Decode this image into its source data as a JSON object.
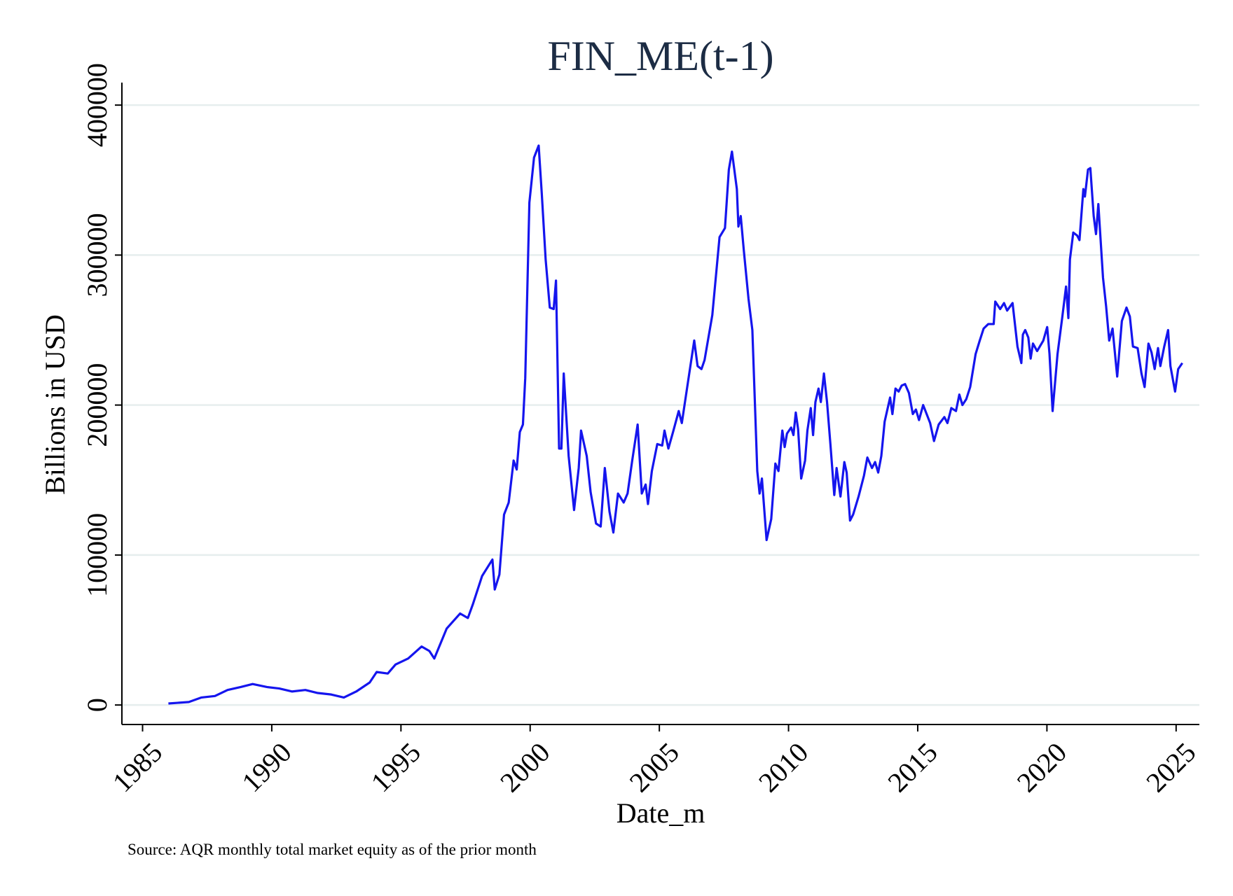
{
  "chart_data": {
    "type": "line",
    "title": "FIN_ME(t-1)",
    "x_label": "Date_m",
    "y_label": "Billions in USD",
    "note": "Source: AQR monthly total market equity as of the prior month",
    "xlim": [
      1984.2,
      2025.9
    ],
    "ylim": [
      -13000,
      415000
    ],
    "xticks": [
      1985,
      1990,
      1995,
      2000,
      2005,
      2010,
      2015,
      2020,
      2025
    ],
    "yticks": [
      0,
      100000,
      200000,
      300000,
      400000
    ],
    "grid": true,
    "x": [
      1986.0,
      1986.79,
      1987.28,
      1987.8,
      1988.29,
      1988.8,
      1989.26,
      1989.81,
      1990.29,
      1990.78,
      1991.3,
      1991.78,
      1992.3,
      1992.79,
      1993.27,
      1993.79,
      1994.06,
      1994.49,
      1994.79,
      1995.28,
      1995.8,
      1996.1,
      1996.29,
      1996.77,
      1997.29,
      1997.59,
      1997.78,
      1998.14,
      1998.54,
      1998.63,
      1998.81,
      1998.99,
      1999.17,
      1999.36,
      1999.48,
      1999.6,
      1999.72,
      1999.81,
      1999.97,
      2000.15,
      2000.33,
      2000.45,
      2000.6,
      2000.76,
      2000.91,
      2001.0,
      2001.12,
      2001.21,
      2001.3,
      2001.49,
      2001.7,
      2001.88,
      2001.97,
      2002.19,
      2002.34,
      2002.55,
      2002.73,
      2002.89,
      2003.07,
      2003.22,
      2003.4,
      2003.62,
      2003.77,
      2003.95,
      2004.16,
      2004.32,
      2004.47,
      2004.56,
      2004.71,
      2004.92,
      2005.11,
      2005.2,
      2005.35,
      2005.53,
      2005.75,
      2005.87,
      2006.14,
      2006.35,
      2006.48,
      2006.63,
      2006.75,
      2007.05,
      2007.33,
      2007.54,
      2007.69,
      2007.81,
      2008.0,
      2008.06,
      2008.15,
      2008.27,
      2008.45,
      2008.6,
      2008.79,
      2008.88,
      2008.97,
      2009.15,
      2009.33,
      2009.49,
      2009.61,
      2009.76,
      2009.85,
      2009.94,
      2010.1,
      2010.19,
      2010.28,
      2010.37,
      2010.49,
      2010.64,
      2010.73,
      2010.86,
      2010.95,
      2011.04,
      2011.16,
      2011.25,
      2011.37,
      2011.49,
      2011.62,
      2011.77,
      2011.86,
      2012.01,
      2012.16,
      2012.25,
      2012.38,
      2012.5,
      2012.71,
      2012.92,
      2013.05,
      2013.23,
      2013.35,
      2013.47,
      2013.59,
      2013.72,
      2013.93,
      2014.02,
      2014.14,
      2014.26,
      2014.38,
      2014.51,
      2014.66,
      2014.81,
      2014.93,
      2015.05,
      2015.21,
      2015.48,
      2015.63,
      2015.81,
      2016.03,
      2016.15,
      2016.3,
      2016.48,
      2016.61,
      2016.73,
      2016.88,
      2017.03,
      2017.24,
      2017.4,
      2017.55,
      2017.73,
      2017.94,
      2018.0,
      2018.19,
      2018.34,
      2018.46,
      2018.67,
      2018.86,
      2019.01,
      2019.07,
      2019.16,
      2019.28,
      2019.37,
      2019.46,
      2019.62,
      2019.86,
      2020.01,
      2020.1,
      2020.22,
      2020.41,
      2020.59,
      2020.74,
      2020.83,
      2020.89,
      2021.02,
      2021.17,
      2021.26,
      2021.41,
      2021.47,
      2021.59,
      2021.68,
      2021.81,
      2021.9,
      2021.99,
      2022.17,
      2022.29,
      2022.41,
      2022.54,
      2022.72,
      2022.9,
      2023.08,
      2023.21,
      2023.33,
      2023.51,
      2023.66,
      2023.78,
      2023.93,
      2024.05,
      2024.17,
      2024.3,
      2024.39,
      2024.54,
      2024.69,
      2024.78,
      2024.96,
      2025.08,
      2025.24
    ],
    "series": [
      {
        "name": "FIN_ME(t-1)",
        "color": "#1515ee",
        "values": [
          1000,
          2000,
          5000,
          6000,
          10000,
          12000,
          14000,
          12000,
          11000,
          9000,
          10000,
          8000,
          7000,
          5000,
          9000,
          15000,
          22000,
          21000,
          27000,
          31000,
          39000,
          36000,
          31000,
          51000,
          61000,
          58000,
          67000,
          86000,
          97000,
          77000,
          87000,
          127000,
          135000,
          163000,
          157000,
          182000,
          187000,
          218000,
          335000,
          365000,
          373000,
          341000,
          297000,
          265000,
          264000,
          283000,
          171000,
          171000,
          221000,
          166000,
          130000,
          158000,
          183000,
          166000,
          142000,
          121000,
          119000,
          158000,
          129000,
          115000,
          141000,
          135000,
          141000,
          163000,
          187000,
          141000,
          147000,
          134000,
          156000,
          174000,
          173000,
          183000,
          171000,
          182000,
          196000,
          188000,
          219000,
          243000,
          226000,
          224000,
          230000,
          260000,
          312000,
          318000,
          357000,
          369000,
          344000,
          319000,
          326000,
          303000,
          271000,
          250000,
          156000,
          141000,
          151000,
          110000,
          124000,
          161000,
          156000,
          183000,
          172000,
          181000,
          185000,
          180000,
          195000,
          184000,
          151000,
          163000,
          183000,
          198000,
          180000,
          202000,
          211000,
          202000,
          221000,
          202000,
          174000,
          140000,
          158000,
          139000,
          162000,
          155000,
          123000,
          127000,
          139000,
          153000,
          165000,
          158000,
          162000,
          155000,
          166000,
          189000,
          205000,
          194000,
          211000,
          209000,
          213000,
          214000,
          208000,
          194000,
          197000,
          190000,
          200000,
          188000,
          176000,
          187000,
          192000,
          188000,
          198000,
          196000,
          207000,
          200000,
          204000,
          212000,
          234000,
          243000,
          251000,
          254000,
          254000,
          269000,
          264000,
          268000,
          263000,
          268000,
          239000,
          228000,
          247000,
          250000,
          245000,
          231000,
          241000,
          236000,
          243000,
          252000,
          234000,
          196000,
          234000,
          258000,
          279000,
          258000,
          297000,
          315000,
          313000,
          310000,
          344000,
          339000,
          357000,
          358000,
          326000,
          314000,
          334000,
          285000,
          266000,
          243000,
          251000,
          219000,
          256000,
          265000,
          259000,
          239000,
          238000,
          221000,
          212000,
          241000,
          235000,
          224000,
          238000,
          226000,
          239000,
          250000,
          226000,
          209000,
          224000,
          228000
        ]
      }
    ]
  }
}
